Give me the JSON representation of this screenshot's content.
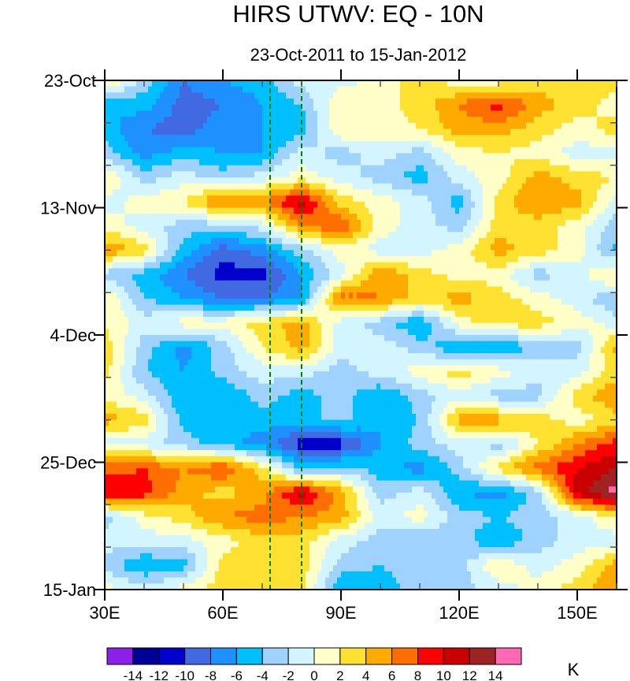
{
  "chart_data": {
    "type": "heatmap",
    "title": "HIRS UTWV: EQ - 10N",
    "subtitle": "23-Oct-2011 to 15-Jan-2012",
    "xlabel": "",
    "ylabel": "",
    "units": "K",
    "xlim": [
      30,
      160
    ],
    "ylim_days": [
      0,
      84
    ],
    "x_ticks": [
      {
        "value": 30,
        "label": "30E"
      },
      {
        "value": 60,
        "label": "60E"
      },
      {
        "value": 90,
        "label": "90E"
      },
      {
        "value": 120,
        "label": "120E"
      },
      {
        "value": 150,
        "label": "150E"
      }
    ],
    "y_ticks": [
      {
        "day": 0,
        "label": "23-Oct"
      },
      {
        "day": 21,
        "label": "13-Nov"
      },
      {
        "day": 42,
        "label": "4-Dec"
      },
      {
        "day": 63,
        "label": "25-Dec"
      },
      {
        "day": 84,
        "label": "15-Jan"
      }
    ],
    "reference_lines_lon": [
      72,
      80
    ],
    "contour_levels": [
      -14,
      -12,
      -10,
      -8,
      -6,
      -4,
      -2,
      0,
      2,
      4,
      6,
      8,
      10,
      12,
      14
    ],
    "colorbar_labels": [
      "-14",
      "-12",
      "-10",
      "-8",
      "-6",
      "-4",
      "-2",
      "0",
      "2",
      "4",
      "6",
      "8",
      "10",
      "12",
      "14"
    ],
    "colors": [
      "#8c1fe8",
      "#000096",
      "#0000cd",
      "#4169e1",
      "#1e90ff",
      "#00bfff",
      "#a0d2ff",
      "#d2f5ff",
      "#ffffc8",
      "#ffe132",
      "#ffaa00",
      "#ff6e00",
      "#ff0000",
      "#c80000",
      "#a02323",
      "#ff69b4"
    ],
    "lon": [
      30,
      40,
      50,
      60,
      70,
      80,
      90,
      100,
      110,
      120,
      130,
      140,
      150,
      160
    ],
    "day": [
      0,
      4,
      8,
      12,
      16,
      20,
      24,
      28,
      32,
      36,
      40,
      44,
      48,
      52,
      56,
      60,
      64,
      68,
      72,
      76,
      80,
      84
    ],
    "values": [
      [
        3,
        -3,
        -8,
        -6,
        -5,
        -1,
        -1,
        1,
        3,
        1,
        1,
        3,
        3,
        3
      ],
      [
        -6,
        -5,
        -9,
        -8,
        -6,
        -4,
        2,
        1,
        3,
        6,
        9,
        5,
        3,
        1
      ],
      [
        -5,
        -8,
        -9,
        -7,
        -6,
        -5,
        2,
        1,
        2,
        5,
        5,
        3,
        1,
        3
      ],
      [
        -3,
        -7,
        -5,
        -6,
        -6,
        -1,
        -3,
        -1,
        -3,
        1,
        2,
        1,
        -1,
        -1
      ],
      [
        2,
        -3,
        -1,
        -3,
        -1,
        1,
        -1,
        -3,
        -5,
        -1,
        1,
        5,
        3,
        2
      ],
      [
        -1,
        1,
        2,
        7,
        6,
        11,
        3,
        1,
        -1,
        -5,
        3,
        6,
        5,
        -1
      ],
      [
        1,
        -1,
        -3,
        -3,
        -1,
        6,
        8,
        1,
        -1,
        -3,
        3,
        3,
        1,
        -3
      ],
      [
        6,
        3,
        -5,
        -9,
        -7,
        -3,
        1,
        -1,
        -1,
        1,
        5,
        3,
        1,
        -5
      ],
      [
        -3,
        -5,
        -8,
        -11,
        -11,
        -6,
        -1,
        6,
        3,
        1,
        1,
        -3,
        -1,
        3
      ],
      [
        2,
        -4,
        -6,
        -8,
        -8,
        -6,
        7,
        6,
        3,
        5,
        3,
        1,
        -1,
        -4
      ],
      [
        2,
        -1,
        1,
        1,
        3,
        5,
        -1,
        -3,
        -6,
        1,
        3,
        3,
        1,
        -1
      ],
      [
        3,
        -3,
        -7,
        -3,
        2,
        5,
        -1,
        -1,
        -3,
        -6,
        -7,
        -3,
        -3,
        5
      ],
      [
        3,
        -4,
        -6,
        -3,
        -1,
        -1,
        -3,
        -1,
        1,
        3,
        1,
        -1,
        -1,
        3
      ],
      [
        1,
        -1,
        -6,
        -6,
        -3,
        -5,
        -3,
        -6,
        -3,
        -1,
        -3,
        -3,
        3,
        6
      ],
      [
        5,
        3,
        -5,
        -6,
        -5,
        -5,
        -3,
        -6,
        -4,
        5,
        5,
        3,
        1,
        3
      ],
      [
        -1,
        -1,
        -3,
        -5,
        -7,
        -11,
        -11,
        -6,
        -3,
        -1,
        -3,
        2,
        6,
        9
      ],
      [
        7,
        8,
        6,
        8,
        3,
        -5,
        -3,
        -5,
        -7,
        -3,
        3,
        7,
        10,
        12
      ],
      [
        10,
        9,
        5,
        3,
        5,
        11,
        5,
        -3,
        -1,
        -6,
        -7,
        -3,
        11,
        15
      ],
      [
        -3,
        1,
        3,
        6,
        7,
        6,
        5,
        -1,
        1,
        -3,
        -4,
        -3,
        -1,
        2
      ],
      [
        -1,
        -1,
        -1,
        1,
        3,
        3,
        -1,
        -3,
        -4,
        -3,
        -6,
        -3,
        -1,
        -1
      ],
      [
        -3,
        -6,
        -5,
        3,
        3,
        3,
        -3,
        -4,
        -3,
        -3,
        2,
        -1,
        1,
        5
      ],
      [
        1,
        -1,
        1,
        3,
        3,
        3,
        -6,
        -5,
        -3,
        -3,
        -1,
        1,
        3,
        6
      ]
    ]
  }
}
